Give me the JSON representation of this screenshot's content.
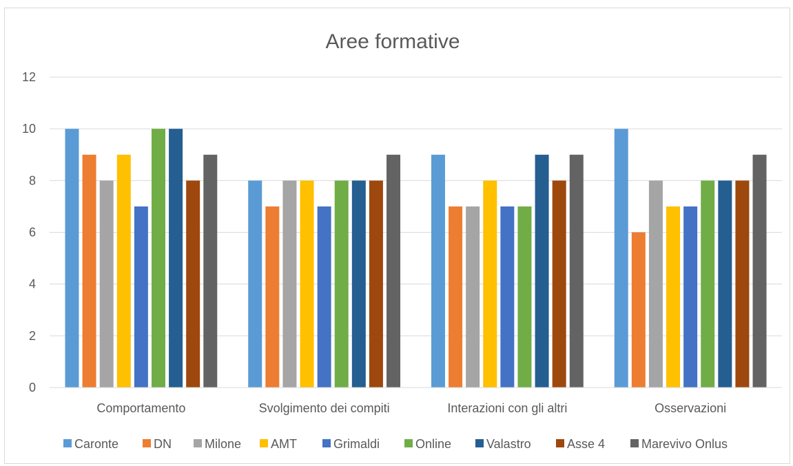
{
  "chart_data": {
    "type": "bar",
    "title": "Aree formative",
    "xlabel": "",
    "ylabel": "",
    "ylim": [
      0,
      12
    ],
    "yticks": [
      0,
      2,
      4,
      6,
      8,
      10,
      12
    ],
    "grid": true,
    "legend_position": "bottom",
    "categories": [
      "Comportamento",
      "Svolgimento dei compiti",
      "Interazioni con gli altri",
      "Osservazioni"
    ],
    "series": [
      {
        "name": "Caronte",
        "color": "#5b9bd5",
        "values": [
          10,
          8,
          9,
          10
        ]
      },
      {
        "name": "DN",
        "color": "#ed7d31",
        "values": [
          9,
          7,
          7,
          6
        ]
      },
      {
        "name": "Milone",
        "color": "#a5a5a5",
        "values": [
          8,
          8,
          7,
          8
        ]
      },
      {
        "name": "AMT",
        "color": "#ffc000",
        "values": [
          9,
          8,
          8,
          7
        ]
      },
      {
        "name": "Grimaldi",
        "color": "#4472c4",
        "values": [
          7,
          7,
          7,
          7
        ]
      },
      {
        "name": "Online",
        "color": "#70ad47",
        "values": [
          10,
          8,
          7,
          8
        ]
      },
      {
        "name": "Valastro",
        "color": "#255e91",
        "values": [
          10,
          8,
          9,
          8
        ]
      },
      {
        "name": "Asse 4",
        "color": "#9e480e",
        "values": [
          8,
          8,
          8,
          8
        ]
      },
      {
        "name": "Marevivo Onlus",
        "color": "#636363",
        "values": [
          9,
          9,
          9,
          9
        ]
      }
    ]
  }
}
